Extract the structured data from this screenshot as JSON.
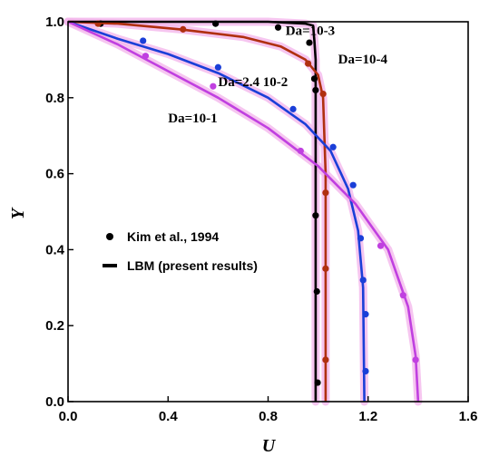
{
  "chart_data": {
    "type": "line",
    "title": "",
    "xlabel": "U",
    "ylabel": "Y",
    "xlim": [
      0.0,
      1.6
    ],
    "ylim": [
      0.0,
      1.0
    ],
    "xticks": [
      "0.0",
      "0.4",
      "0.8",
      "1.2",
      "1.6"
    ],
    "yticks": [
      "0.0",
      "0.2",
      "0.4",
      "0.6",
      "0.8",
      "1.0"
    ],
    "grid": false,
    "legend_position": "middle-left",
    "legend": [
      {
        "label": "Kim et al., 1994",
        "marker": "dot"
      },
      {
        "label": "LBM (present results)",
        "marker": "line"
      }
    ],
    "series": [
      {
        "label": "Da=10-4",
        "color": "#000000",
        "line": [
          [
            0.0,
            1.0
          ],
          [
            0.4,
            1.0
          ],
          [
            0.8,
            1.0
          ],
          [
            0.95,
            0.995
          ],
          [
            0.98,
            0.99
          ],
          [
            0.985,
            0.95
          ],
          [
            0.99,
            0.9
          ],
          [
            0.99,
            0.0
          ]
        ],
        "points": [
          [
            0.13,
            0.995
          ],
          [
            0.59,
            0.995
          ],
          [
            0.84,
            0.985
          ],
          [
            0.965,
            0.945
          ],
          [
            0.985,
            0.85
          ],
          [
            0.99,
            0.82
          ],
          [
            0.99,
            0.49
          ],
          [
            0.995,
            0.29
          ],
          [
            0.998,
            0.05
          ]
        ]
      },
      {
        "label": "Da=10-3",
        "color": "#b03010",
        "line": [
          [
            0.0,
            1.0
          ],
          [
            0.2,
            0.995
          ],
          [
            0.45,
            0.98
          ],
          [
            0.7,
            0.96
          ],
          [
            0.85,
            0.935
          ],
          [
            0.95,
            0.9
          ],
          [
            1.0,
            0.86
          ],
          [
            1.02,
            0.8
          ],
          [
            1.03,
            0.6
          ],
          [
            1.03,
            0.0
          ]
        ],
        "points": [
          [
            0.12,
            0.995
          ],
          [
            0.46,
            0.98
          ],
          [
            0.96,
            0.89
          ],
          [
            1.02,
            0.81
          ],
          [
            1.03,
            0.55
          ],
          [
            1.03,
            0.35
          ],
          [
            1.03,
            0.11
          ]
        ]
      },
      {
        "label": "Da=2.4 10-2",
        "color": "#1a3fd8",
        "line": [
          [
            0.0,
            1.0
          ],
          [
            0.2,
            0.955
          ],
          [
            0.4,
            0.915
          ],
          [
            0.6,
            0.865
          ],
          [
            0.8,
            0.8
          ],
          [
            0.95,
            0.73
          ],
          [
            1.05,
            0.66
          ],
          [
            1.12,
            0.56
          ],
          [
            1.16,
            0.45
          ],
          [
            1.18,
            0.3
          ],
          [
            1.185,
            0.0
          ]
        ],
        "points": [
          [
            0.3,
            0.95
          ],
          [
            0.6,
            0.88
          ],
          [
            0.9,
            0.77
          ],
          [
            1.06,
            0.67
          ],
          [
            1.14,
            0.57
          ],
          [
            1.17,
            0.43
          ],
          [
            1.18,
            0.32
          ],
          [
            1.19,
            0.23
          ],
          [
            1.19,
            0.08
          ]
        ]
      },
      {
        "label": "Da=10-1",
        "color": "#c040e0",
        "line": [
          [
            0.0,
            1.0
          ],
          [
            0.2,
            0.94
          ],
          [
            0.4,
            0.87
          ],
          [
            0.6,
            0.8
          ],
          [
            0.8,
            0.72
          ],
          [
            1.0,
            0.62
          ],
          [
            1.15,
            0.52
          ],
          [
            1.28,
            0.4
          ],
          [
            1.36,
            0.25
          ],
          [
            1.39,
            0.12
          ],
          [
            1.4,
            0.0
          ]
        ],
        "points": [
          [
            0.31,
            0.91
          ],
          [
            0.58,
            0.83
          ],
          [
            0.93,
            0.66
          ],
          [
            1.25,
            0.41
          ],
          [
            1.34,
            0.28
          ],
          [
            1.39,
            0.11
          ]
        ]
      }
    ],
    "annotations": [
      {
        "text": "Da=10-3",
        "x": 0.87,
        "y": 0.965
      },
      {
        "text": "Da=10-4",
        "x": 1.08,
        "y": 0.89
      },
      {
        "text": "Da=2.4 10-2",
        "x": 0.6,
        "y": 0.83
      },
      {
        "text": "Da=10-1",
        "x": 0.4,
        "y": 0.735
      }
    ]
  }
}
